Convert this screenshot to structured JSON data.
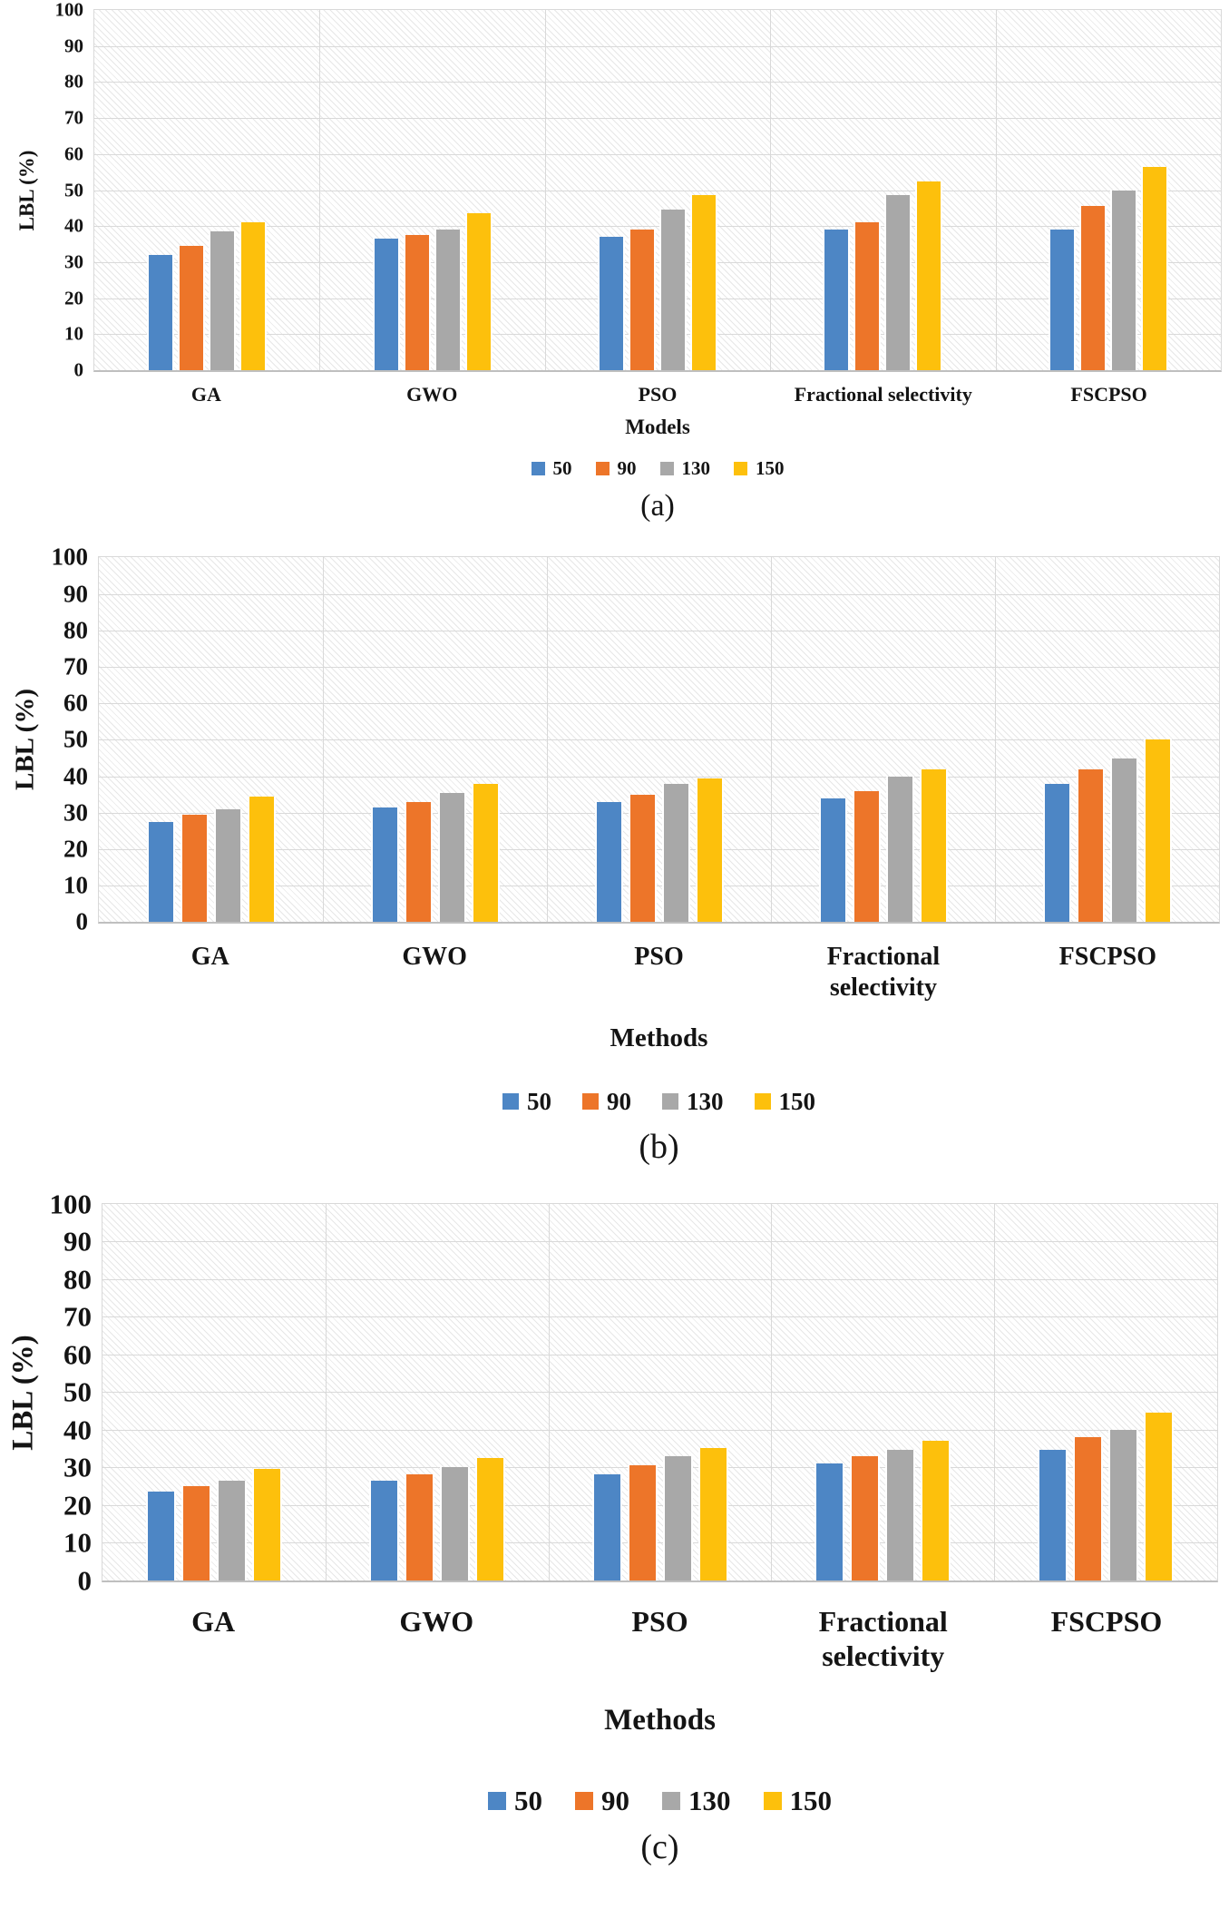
{
  "figure": {
    "ylabel": "LBL (%)",
    "legend_labels": [
      "50",
      "90",
      "130",
      "150"
    ],
    "colors": {
      "blue": "#4D86C5",
      "orange": "#ED7529",
      "gray": "#A8A8A8",
      "yellow": "#FDC00C"
    }
  },
  "chart_data": [
    {
      "id": "a",
      "type": "bar",
      "caption": "(a)",
      "xlabel": "Models",
      "ylabel": "LBL (%)",
      "ylim": [
        0,
        100
      ],
      "ytick_step": 10,
      "grid": true,
      "legend_position": "bottom",
      "categories": [
        [
          "GA"
        ],
        [
          "GWO"
        ],
        [
          "PSO"
        ],
        [
          "Fractional selectivity"
        ],
        [
          "FSCPSO"
        ]
      ],
      "series": [
        {
          "name": "50",
          "color": "#4D86C5",
          "values": [
            32,
            36.5,
            37,
            39,
            39
          ]
        },
        {
          "name": "90",
          "color": "#ED7529",
          "values": [
            34.5,
            37.5,
            39,
            41,
            45.5
          ]
        },
        {
          "name": "130",
          "color": "#A8A8A8",
          "values": [
            38.5,
            39,
            44.5,
            48.5,
            50
          ]
        },
        {
          "name": "150",
          "color": "#FDC00C",
          "values": [
            41,
            43.5,
            48.5,
            52.5,
            56.5
          ]
        }
      ]
    },
    {
      "id": "b",
      "type": "bar",
      "caption": "(b)",
      "xlabel": "Methods",
      "ylabel": "LBL (%)",
      "ylim": [
        0,
        100
      ],
      "ytick_step": 10,
      "grid": true,
      "legend_position": "bottom",
      "categories": [
        [
          "GA"
        ],
        [
          "GWO"
        ],
        [
          "PSO"
        ],
        [
          "Fractional",
          "selectivity"
        ],
        [
          "FSCPSO"
        ]
      ],
      "series": [
        {
          "name": "50",
          "color": "#4D86C5",
          "values": [
            27.5,
            31.5,
            33,
            34,
            38
          ]
        },
        {
          "name": "90",
          "color": "#ED7529",
          "values": [
            29.5,
            33,
            35,
            36,
            42
          ]
        },
        {
          "name": "130",
          "color": "#A8A8A8",
          "values": [
            31,
            35.5,
            38,
            40,
            45
          ]
        },
        {
          "name": "150",
          "color": "#FDC00C",
          "values": [
            34.5,
            38,
            39.5,
            42,
            50
          ]
        }
      ]
    },
    {
      "id": "c",
      "type": "bar",
      "caption": "(c)",
      "xlabel": "Methods",
      "ylabel": "LBL (%)",
      "ylim": [
        0,
        100
      ],
      "ytick_step": 10,
      "grid": true,
      "legend_position": "bottom",
      "categories": [
        [
          "GA"
        ],
        [
          "GWO"
        ],
        [
          "PSO"
        ],
        [
          "Fractional",
          "selectivity"
        ],
        [
          "FSCPSO"
        ]
      ],
      "series": [
        {
          "name": "50",
          "color": "#4D86C5",
          "values": [
            23.5,
            26.5,
            28,
            31,
            34.5
          ]
        },
        {
          "name": "90",
          "color": "#ED7529",
          "values": [
            25,
            28,
            30.5,
            33,
            38
          ]
        },
        {
          "name": "130",
          "color": "#A8A8A8",
          "values": [
            26.5,
            30,
            33,
            34.5,
            40
          ]
        },
        {
          "name": "150",
          "color": "#FDC00C",
          "values": [
            29.5,
            32.5,
            35,
            37,
            44.5
          ]
        }
      ]
    }
  ]
}
